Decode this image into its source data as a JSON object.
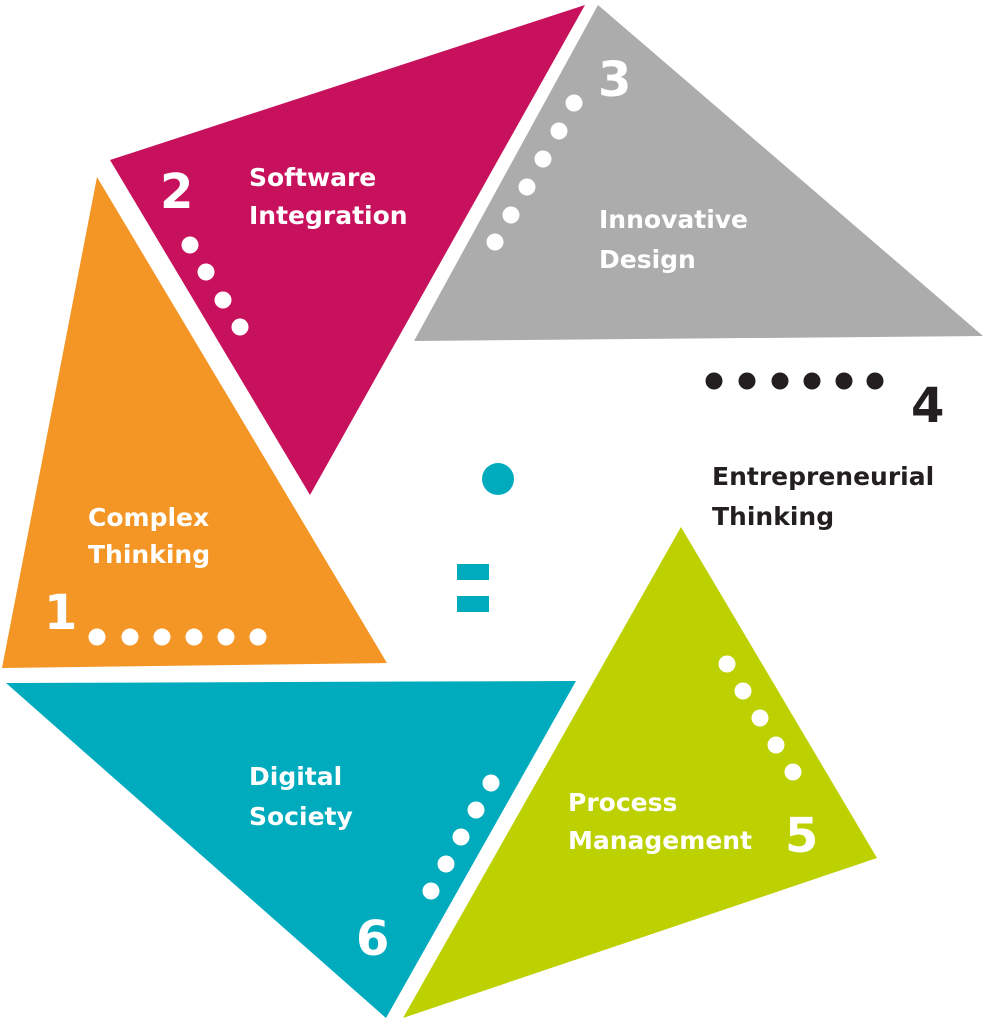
{
  "segments": [
    {
      "id": "s1",
      "number": "1",
      "lines": [
        "Complex",
        "Thinking"
      ],
      "color": "#F39626"
    },
    {
      "id": "s2",
      "number": "2",
      "lines": [
        "Software",
        "Integration"
      ],
      "color": "#C8115C"
    },
    {
      "id": "s3",
      "number": "3",
      "lines": [
        "Innovative",
        "Design"
      ],
      "color": "#ACACAC"
    },
    {
      "id": "s4",
      "number": "4",
      "lines": [
        "Entrepreneurial",
        "Thinking"
      ],
      "color": "#FFFFFF"
    },
    {
      "id": "s5",
      "number": "5",
      "lines": [
        "Process",
        "Management"
      ],
      "color": "#BDD000"
    },
    {
      "id": "s6",
      "number": "6",
      "lines": [
        "Digital",
        "Society"
      ],
      "color": "#00ABBE"
    }
  ],
  "colors": {
    "text_on_color": "#FFFFFF",
    "text_dark": "#231F20",
    "dots_dark": "#231F20",
    "center_accent": "#00ABBE"
  }
}
